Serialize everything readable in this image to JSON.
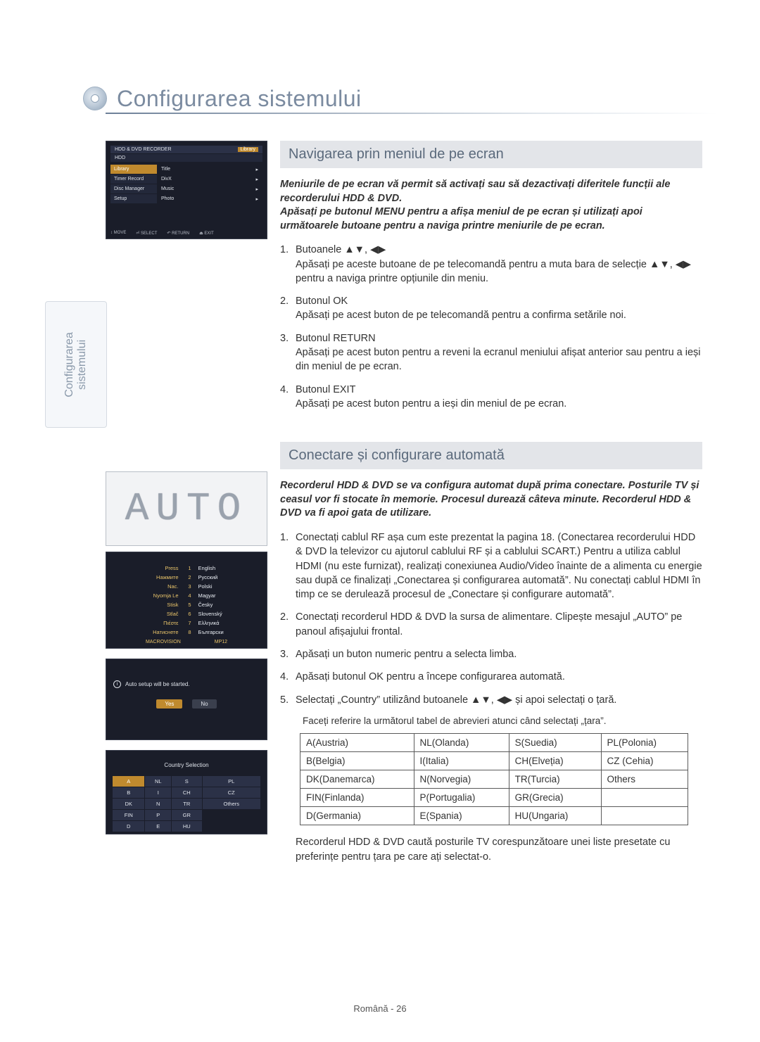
{
  "page_title": "Configurarea sistemului",
  "side_tab": {
    "line1": "Configurarea",
    "line2": "sistemului"
  },
  "preview1": {
    "header_left": "HDD & DVD RECORDER",
    "header_right": "Library",
    "sub": "HDD",
    "menu": [
      "Library",
      "Timer Record",
      "Disc Manager",
      "Setup"
    ],
    "menu_selected_index": 0,
    "list": [
      "Title",
      "DivX",
      "Music",
      "Photo"
    ],
    "footer": [
      "↕ MOVE",
      "⏎ SELECT",
      "↶ RETURN",
      "⏏ EXIT"
    ]
  },
  "preview_auto": "AUTO",
  "preview_lang": {
    "rows": [
      {
        "label": "Press",
        "num": "1",
        "value": "English"
      },
      {
        "label": "Нажмите",
        "num": "2",
        "value": "Русский"
      },
      {
        "label": "Nac.",
        "num": "3",
        "value": "Polski"
      },
      {
        "label": "Nyomja Le",
        "num": "4",
        "value": "Magyar"
      },
      {
        "label": "Stisk",
        "num": "5",
        "value": "Česky"
      },
      {
        "label": "Stlač",
        "num": "6",
        "value": "Slovenský"
      },
      {
        "label": "Πιέστε",
        "num": "7",
        "value": "Ελληνικά"
      },
      {
        "label": "Натиснете",
        "num": "8",
        "value": "Български"
      }
    ],
    "footer_left": "MACROVISION",
    "footer_right": "MP12"
  },
  "preview_confirm": {
    "message": "Auto setup will be started.",
    "yes": "Yes",
    "no": "No"
  },
  "preview_country": {
    "title": "Country Selection",
    "grid": [
      [
        "A",
        "NL",
        "S",
        "PL"
      ],
      [
        "B",
        "I",
        "CH",
        "CZ"
      ],
      [
        "DK",
        "N",
        "TR",
        "Others"
      ],
      [
        "FIN",
        "P",
        "GR",
        ""
      ],
      [
        "D",
        "E",
        "HU",
        ""
      ]
    ],
    "selected": "A"
  },
  "section1": {
    "title": "Navigarea prin meniul de pe ecran",
    "preamble_l1": "Meniurile de pe ecran vă permit să activați sau să dezactivați diferitele funcții ale recorderului HDD & DVD.",
    "preamble_l2": "Apăsați pe butonul MENU pentru a afișa meniul de pe ecran și utilizați apoi următoarele butoane pentru a naviga printre meniurile de pe ecran.",
    "items": [
      {
        "head": "Butoanele ▲▼, ◀▶",
        "body": "Apăsați pe aceste butoane de pe telecomandă pentru a muta bara de selecție ▲▼, ◀▶ pentru a naviga printre opțiunile din meniu."
      },
      {
        "head": "Butonul OK",
        "body": "Apăsați pe acest buton de pe telecomandă pentru a confirma setările noi."
      },
      {
        "head": "Butonul RETURN",
        "body": "Apăsați pe acest buton pentru a reveni la ecranul meniului afișat anterior sau pentru a ieși din meniul de pe ecran."
      },
      {
        "head": "Butonul EXIT",
        "body": "Apăsați pe acest buton pentru a ieși din meniul de pe ecran."
      }
    ]
  },
  "section2": {
    "title": "Conectare și configurare automată",
    "preamble": "Recorderul HDD & DVD se va configura automat după prima conectare. Posturile TV și ceasul vor fi stocate în memorie. Procesul durează câteva minute. Recorderul HDD & DVD va fi apoi gata de utilizare.",
    "items": [
      "Conectați cablul RF așa cum este prezentat la pagina 18. (Conectarea recorderului HDD & DVD la televizor cu ajutorul cablului RF și a cablului SCART.) Pentru a utiliza cablul HDMI (nu este furnizat), realizați conexiunea Audio/Video înainte de a alimenta cu energie sau după ce finalizați „Conectarea și configurarea automată”. Nu conectați cablul HDMI în timp ce se derulează procesul de „Conectare și configurare automată”.",
      "Conectați recorderul HDD & DVD la sursa de alimentare. Clipește mesajul „AUTO” pe panoul afișajului frontal.",
      "Apăsați un buton numeric pentru a selecta limba.",
      "Apăsați butonul OK pentru a începe configurarea automată.",
      "Selectați „Country” utilizând butoanele ▲▼, ◀▶ și apoi selectați o țară."
    ],
    "note": "Faceți referire la următorul tabel de abrevieri atunci când selectați „țara”.",
    "countries": [
      [
        "A(Austria)",
        "NL(Olanda)",
        "S(Suedia)",
        "PL(Polonia)"
      ],
      [
        "B(Belgia)",
        "I(Italia)",
        "CH(Elveția)",
        "CZ (Cehia)"
      ],
      [
        "DK(Danemarca)",
        "N(Norvegia)",
        "TR(Turcia)",
        "Others"
      ],
      [
        "FIN(Finlanda)",
        "P(Portugalia)",
        "GR(Grecia)",
        ""
      ],
      [
        "D(Germania)",
        "E(Spania)",
        "HU(Ungaria)",
        ""
      ]
    ],
    "trail": "Recorderul HDD & DVD caută posturile TV corespunzătoare unei liste presetate cu preferințe pentru țara pe care ați selectat-o."
  },
  "page_number": "Română - 26",
  "colors": {
    "accent": "#c08a2e",
    "panel_bg": "#1a1d29",
    "section_title_bg": "#e3e5e9",
    "section_title_color": "#5b6a7c"
  }
}
